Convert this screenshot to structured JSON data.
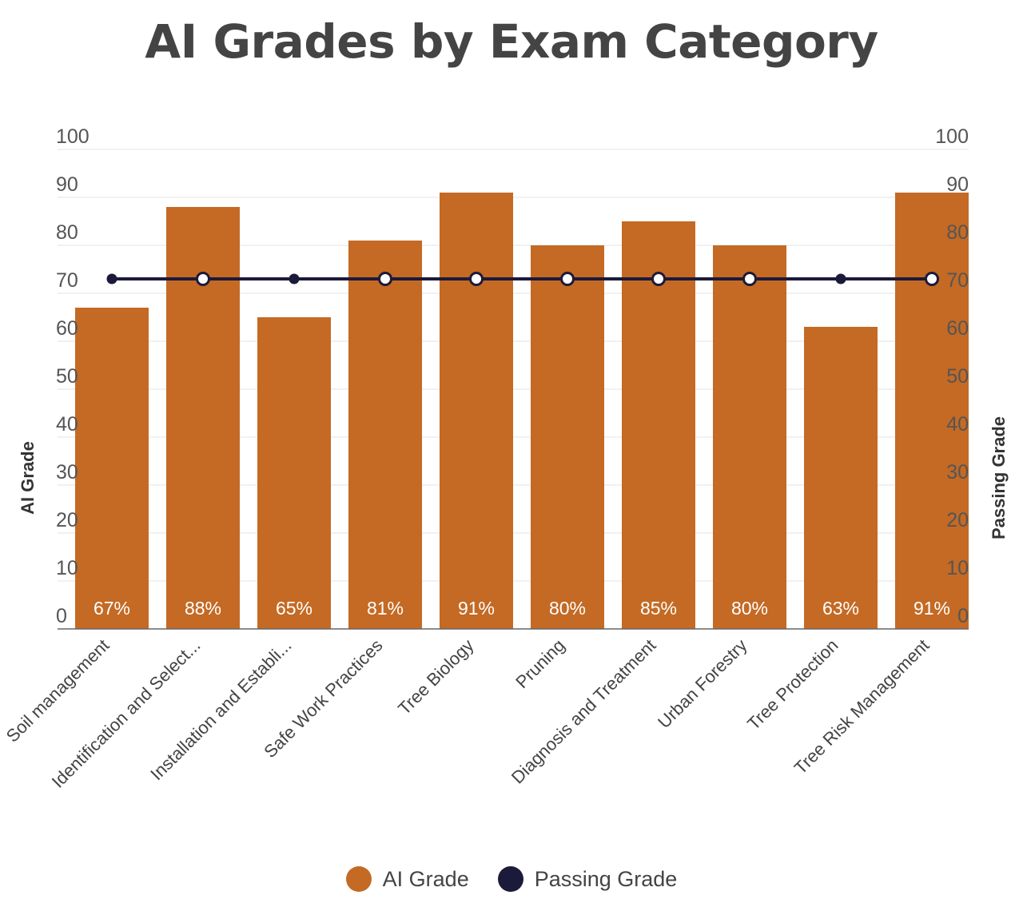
{
  "chart_data": {
    "type": "bar",
    "title": "AI Grades by Exam Category",
    "ylabel_left": "AI Grade",
    "ylabel_right": "Passing Grade",
    "ylim": [
      0,
      100
    ],
    "yticks": [
      "0",
      "10",
      "20",
      "30",
      "40",
      "50",
      "60",
      "70",
      "80",
      "90",
      "100"
    ],
    "grid": true,
    "legend_position": "bottom-center",
    "categories": [
      "Soil management",
      "Identification and Select...",
      "Installation and Establi...",
      "Safe Work Practices",
      "Tree Biology",
      "Pruning",
      "Diagnosis and Treatment",
      "Urban Forestry",
      "Tree Protection",
      "Tree Risk Management"
    ],
    "series": [
      {
        "name": "AI Grade",
        "type": "bar",
        "color": "#C46A24",
        "values": [
          67,
          88,
          65,
          81,
          91,
          80,
          85,
          80,
          63,
          91
        ],
        "labels": [
          "67%",
          "88%",
          "65%",
          "81%",
          "91%",
          "80%",
          "85%",
          "80%",
          "63%",
          "91%"
        ]
      },
      {
        "name": "Passing Grade",
        "type": "line",
        "color": "#1C1A3A",
        "values": [
          73,
          73,
          73,
          73,
          73,
          73,
          73,
          73,
          73,
          73
        ]
      }
    ]
  }
}
